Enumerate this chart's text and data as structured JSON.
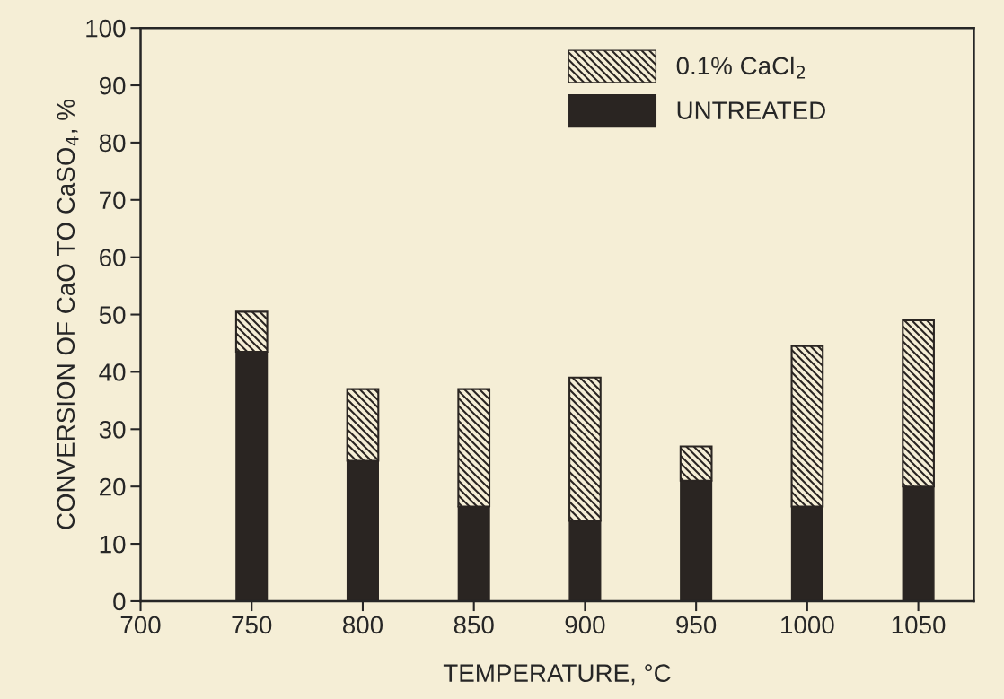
{
  "chart_data": {
    "type": "bar",
    "stacked": true,
    "xlabel": "TEMPERATURE, °C",
    "ylabel": "CONVERSION OF CaO TO CaSO$_{4}$, %",
    "x": [
      750,
      800,
      850,
      900,
      950,
      1000,
      1050
    ],
    "series": [
      {
        "name": "UNTREATED",
        "color": "#2a2522",
        "values": [
          43.5,
          24.5,
          16.5,
          14,
          21,
          16.5,
          20
        ]
      },
      {
        "name": "0.1% CaCl$_{2}$",
        "color": "#2a2522",
        "values": [
          7,
          12.5,
          20.5,
          25,
          6,
          28,
          29
        ]
      }
    ],
    "xlim": [
      700,
      1075
    ],
    "xticks": [
      700,
      750,
      800,
      850,
      900,
      950,
      1000,
      1050
    ],
    "ylim": [
      0,
      100
    ],
    "yticks": [
      0,
      10,
      20,
      30,
      40,
      50,
      60,
      70,
      80,
      90,
      100
    ],
    "grid": false,
    "legend": "top right"
  }
}
